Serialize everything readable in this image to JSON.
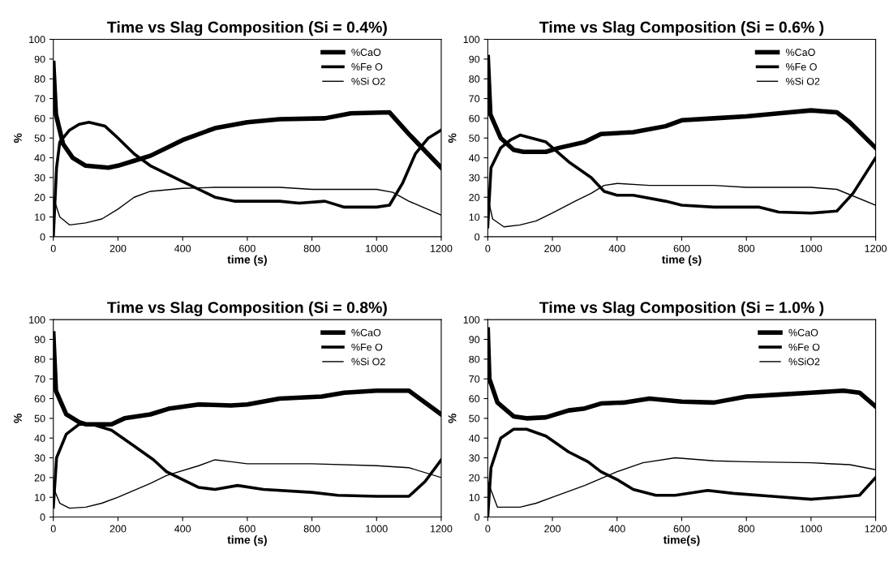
{
  "chart_data": [
    {
      "type": "line",
      "title": "Time vs Slag Composition (Si = 0.4%)",
      "xlabel": "time (s)",
      "ylabel": "%",
      "xlim": [
        0,
        1200
      ],
      "ylim": [
        0,
        100
      ],
      "xticks": [
        0,
        200,
        400,
        600,
        800,
        1000,
        1200
      ],
      "yticks": [
        0,
        10,
        20,
        30,
        40,
        50,
        60,
        70,
        80,
        90,
        100
      ],
      "grid": false,
      "legend": "top right",
      "line_style": "solid",
      "marker": "none",
      "series": [
        {
          "name": "%CaO",
          "color": "#000000",
          "x": [
            0,
            8,
            30,
            60,
            100,
            170,
            200,
            260,
            300,
            400,
            500,
            600,
            700,
            840,
            920,
            1040,
            1100,
            1200
          ],
          "values": [
            88,
            62,
            47,
            40,
            36,
            35,
            36,
            39,
            41,
            49,
            55,
            58,
            59.5,
            60,
            62.5,
            63,
            52,
            35
          ]
        },
        {
          "name": "%Fe O",
          "color": "#000000",
          "x": [
            0,
            10,
            20,
            50,
            80,
            110,
            160,
            200,
            250,
            300,
            400,
            450,
            500,
            560,
            700,
            760,
            840,
            900,
            1000,
            1040,
            1080,
            1120,
            1160,
            1200
          ],
          "values": [
            0,
            35,
            48,
            54,
            57,
            58,
            56,
            50,
            42,
            36,
            28,
            24,
            20,
            18,
            18,
            17,
            18,
            15,
            15,
            16,
            27,
            42,
            50,
            54
          ]
        },
        {
          "name": "%Si O2",
          "color": "#000000",
          "x": [
            0,
            20,
            50,
            100,
            150,
            200,
            250,
            300,
            400,
            500,
            700,
            800,
            1000,
            1050,
            1100,
            1200
          ],
          "values": [
            20,
            10,
            6,
            7,
            9,
            14,
            20,
            23,
            24.5,
            25,
            25,
            24,
            24,
            22.5,
            18,
            11
          ]
        }
      ]
    },
    {
      "type": "line",
      "title": "Time vs Slag Composition (Si = 0.6% )",
      "xlabel": "time (s)",
      "ylabel": "%",
      "xlim": [
        0,
        1200
      ],
      "ylim": [
        0,
        100
      ],
      "xticks": [
        0,
        200,
        400,
        600,
        800,
        1000,
        1200
      ],
      "yticks": [
        0,
        10,
        20,
        30,
        40,
        50,
        60,
        70,
        80,
        90,
        100
      ],
      "grid": false,
      "legend": "top right",
      "line_style": "solid",
      "marker": "none",
      "series": [
        {
          "name": "%CaO",
          "color": "#000000",
          "x": [
            0,
            8,
            40,
            80,
            110,
            180,
            220,
            300,
            350,
            450,
            550,
            600,
            700,
            800,
            900,
            1000,
            1080,
            1120,
            1200
          ],
          "values": [
            91,
            62,
            50,
            44,
            43,
            43,
            45,
            48,
            52,
            53,
            56,
            59,
            60,
            61,
            62.5,
            64,
            63,
            58,
            45
          ]
        },
        {
          "name": "%Fe O",
          "color": "#000000",
          "x": [
            0,
            10,
            40,
            70,
            100,
            180,
            250,
            320,
            360,
            400,
            450,
            550,
            600,
            700,
            840,
            900,
            1000,
            1080,
            1130,
            1200
          ],
          "values": [
            5,
            35,
            45,
            49,
            51.5,
            48,
            38,
            30,
            23,
            21,
            21,
            18,
            16,
            15,
            15,
            12.5,
            12,
            13,
            22,
            40
          ]
        },
        {
          "name": "%Si O2",
          "color": "#000000",
          "x": [
            0,
            15,
            50,
            100,
            150,
            200,
            270,
            320,
            360,
            400,
            500,
            700,
            800,
            1000,
            1080,
            1200
          ],
          "values": [
            20,
            9,
            5,
            6,
            8,
            12,
            18,
            22,
            26,
            27,
            26,
            26,
            25,
            25,
            24,
            16
          ]
        }
      ]
    },
    {
      "type": "line",
      "title": "Time vs Slag Composition (Si = 0.8%)",
      "xlabel": "time (s)",
      "ylabel": "%",
      "xlim": [
        0,
        1200
      ],
      "ylim": [
        0,
        100
      ],
      "xticks": [
        0,
        200,
        400,
        600,
        800,
        1000,
        1200
      ],
      "yticks": [
        0,
        10,
        20,
        30,
        40,
        50,
        60,
        70,
        80,
        90,
        100
      ],
      "grid": false,
      "legend": "top right",
      "line_style": "solid",
      "marker": "none",
      "series": [
        {
          "name": "%CaO",
          "color": "#000000",
          "x": [
            0,
            8,
            40,
            80,
            100,
            180,
            220,
            300,
            360,
            450,
            550,
            600,
            700,
            830,
            900,
            1000,
            1100,
            1200
          ],
          "values": [
            93,
            64,
            52,
            48,
            47,
            47,
            50,
            52,
            55,
            57,
            56.5,
            57,
            60,
            61,
            63,
            64,
            64,
            52
          ]
        },
        {
          "name": "%Fe O",
          "color": "#000000",
          "x": [
            0,
            10,
            40,
            80,
            120,
            180,
            250,
            310,
            350,
            400,
            450,
            500,
            570,
            650,
            800,
            880,
            1000,
            1100,
            1150,
            1200
          ],
          "values": [
            5,
            30,
            42,
            47,
            47,
            44,
            36,
            29,
            23,
            19,
            15,
            14,
            16,
            14,
            12.5,
            11,
            10.5,
            10.5,
            18,
            29
          ]
        },
        {
          "name": "%Si O2",
          "color": "#000000",
          "x": [
            0,
            20,
            50,
            100,
            150,
            200,
            300,
            350,
            450,
            500,
            550,
            600,
            800,
            1000,
            1100,
            1200
          ],
          "values": [
            15,
            7,
            4.5,
            5,
            7,
            10,
            17,
            21,
            26,
            29,
            28,
            27,
            27,
            26,
            25,
            20
          ]
        }
      ]
    },
    {
      "type": "line",
      "title": "Time vs Slag Composition (Si = 1.0% )",
      "xlabel": "time(s)",
      "ylabel": "%",
      "xlim": [
        0,
        1200
      ],
      "ylim": [
        0,
        100
      ],
      "xticks": [
        0,
        200,
        400,
        600,
        800,
        1000,
        1200
      ],
      "yticks": [
        0,
        10,
        20,
        30,
        40,
        50,
        60,
        70,
        80,
        90,
        100
      ],
      "grid": false,
      "legend": "top right",
      "line_style": "solid",
      "marker": "none",
      "series": [
        {
          "name": "%CaO",
          "color": "#000000",
          "x": [
            0,
            5,
            30,
            80,
            120,
            180,
            250,
            300,
            350,
            420,
            500,
            600,
            700,
            800,
            900,
            1000,
            1100,
            1150,
            1200
          ],
          "values": [
            95,
            70,
            58,
            51,
            50,
            50.5,
            54,
            55,
            57.5,
            58,
            60,
            58.5,
            58,
            61,
            62,
            63,
            64,
            63,
            56
          ]
        },
        {
          "name": "%Fe O",
          "color": "#000000",
          "x": [
            0,
            10,
            40,
            80,
            120,
            180,
            250,
            310,
            350,
            400,
            450,
            520,
            580,
            680,
            760,
            880,
            1000,
            1080,
            1150,
            1200
          ],
          "values": [
            0,
            25,
            40,
            44.5,
            44.5,
            41,
            33,
            28,
            23,
            19,
            14,
            11,
            11,
            13.5,
            12,
            10.5,
            9,
            10,
            11,
            20
          ]
        },
        {
          "name": "%SiO2",
          "color": "#000000",
          "x": [
            0,
            30,
            100,
            150,
            200,
            300,
            400,
            480,
            580,
            700,
            800,
            1000,
            1120,
            1200
          ],
          "values": [
            18,
            5,
            5,
            7,
            10,
            16,
            23,
            27.5,
            30,
            28.5,
            28,
            27.5,
            26.5,
            24
          ]
        }
      ]
    }
  ]
}
